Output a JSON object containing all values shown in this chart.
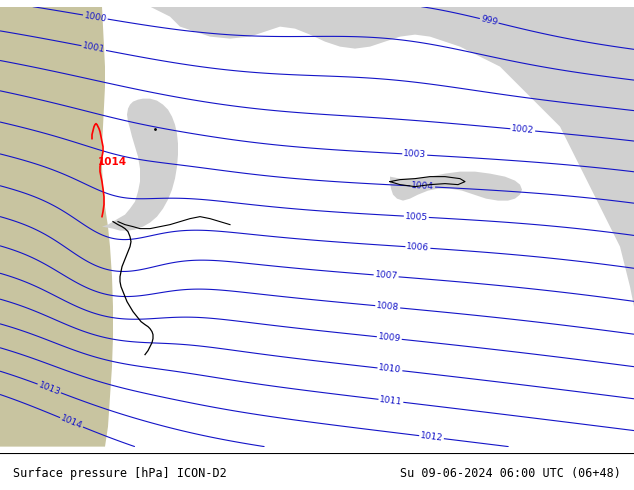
{
  "title_left": "Surface pressure [hPa] ICON-D2",
  "title_right": "Su 09-06-2024 06:00 UTC (06+48)",
  "fig_width": 6.34,
  "fig_height": 4.9,
  "dpi": 100,
  "contour_color": "#1414c8",
  "contour_linewidth": 0.8,
  "label_fontsize": 6.5,
  "footer_fontsize": 8.5,
  "isobar_levels": [
    1000,
    1001,
    1002,
    1003,
    1004,
    1005,
    1006,
    1007,
    1008,
    1009,
    1010,
    1011,
    1012,
    1013,
    1014
  ],
  "highlight_color": "#ff0000",
  "west_land_color": "#c8c4a0",
  "green_land_color": "#b4d49a",
  "sea_gray_color": "#d0d0d0",
  "border_land_color": "#c8c8b0"
}
